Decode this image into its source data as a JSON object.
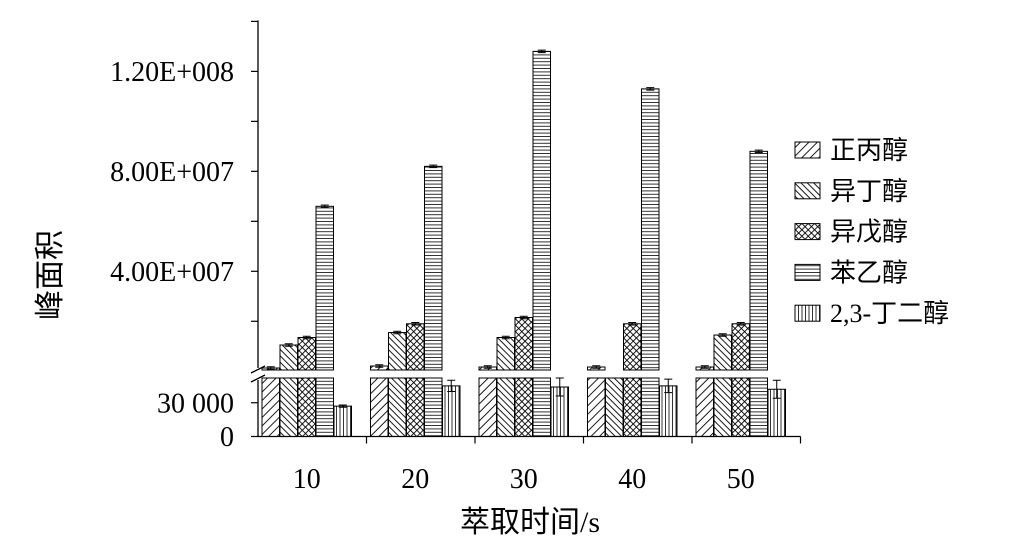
{
  "chart_data": {
    "type": "bar",
    "xlabel": "萃取时间/s",
    "ylabel": "峰面积",
    "categories": [
      "10",
      "20",
      "30",
      "40",
      "50"
    ],
    "series": [
      {
        "name": "正丙醇",
        "hatch": "forward-diagonal",
        "values": [
          1300000,
          2100000,
          1700000,
          1700000,
          1700000
        ],
        "errors": [
          500000,
          500000,
          500000,
          500000,
          500000
        ]
      },
      {
        "name": "异丁醇",
        "hatch": "backward-diagonal",
        "values": [
          10500000,
          15500000,
          13500000,
          300000,
          14500000
        ],
        "errors": [
          500000,
          500000,
          500000,
          0,
          500000
        ]
      },
      {
        "name": "异戊醇",
        "hatch": "crosshatch",
        "values": [
          13500000,
          19000000,
          21500000,
          19000000,
          19000000
        ],
        "errors": [
          500000,
          500000,
          500000,
          500000,
          500000
        ]
      },
      {
        "name": "苯乙醇",
        "hatch": "horizontal",
        "values": [
          66000000,
          82000000,
          128000000,
          113000000,
          88000000
        ],
        "errors": [
          500000,
          500000,
          500000,
          500000,
          500000
        ]
      },
      {
        "name": "2,3-丁二醇",
        "hatch": "vertical",
        "values": [
          27000,
          45000,
          44000,
          45000,
          42000
        ],
        "errors": [
          1000,
          5000,
          8000,
          6000,
          8000
        ]
      }
    ],
    "y_axis_break": {
      "lower": {
        "ylim": [
          0,
          52000
        ],
        "ticks": [
          0,
          30000
        ],
        "tick_labels": [
          "0",
          "30 000"
        ]
      },
      "upper": {
        "ylim": [
          500000,
          140000000
        ],
        "ticks": [
          40000000,
          80000000,
          120000000
        ],
        "tick_labels": [
          "4.00E+007",
          "8.00E+007",
          "1.20E+008"
        ],
        "minor_ticks": [
          20000000,
          60000000,
          100000000,
          140000000
        ]
      }
    },
    "legend_position": "right",
    "grid": false,
    "colors": {
      "background": "#ffffff",
      "bar_fill": "#ffffff",
      "line": "#000000"
    }
  }
}
